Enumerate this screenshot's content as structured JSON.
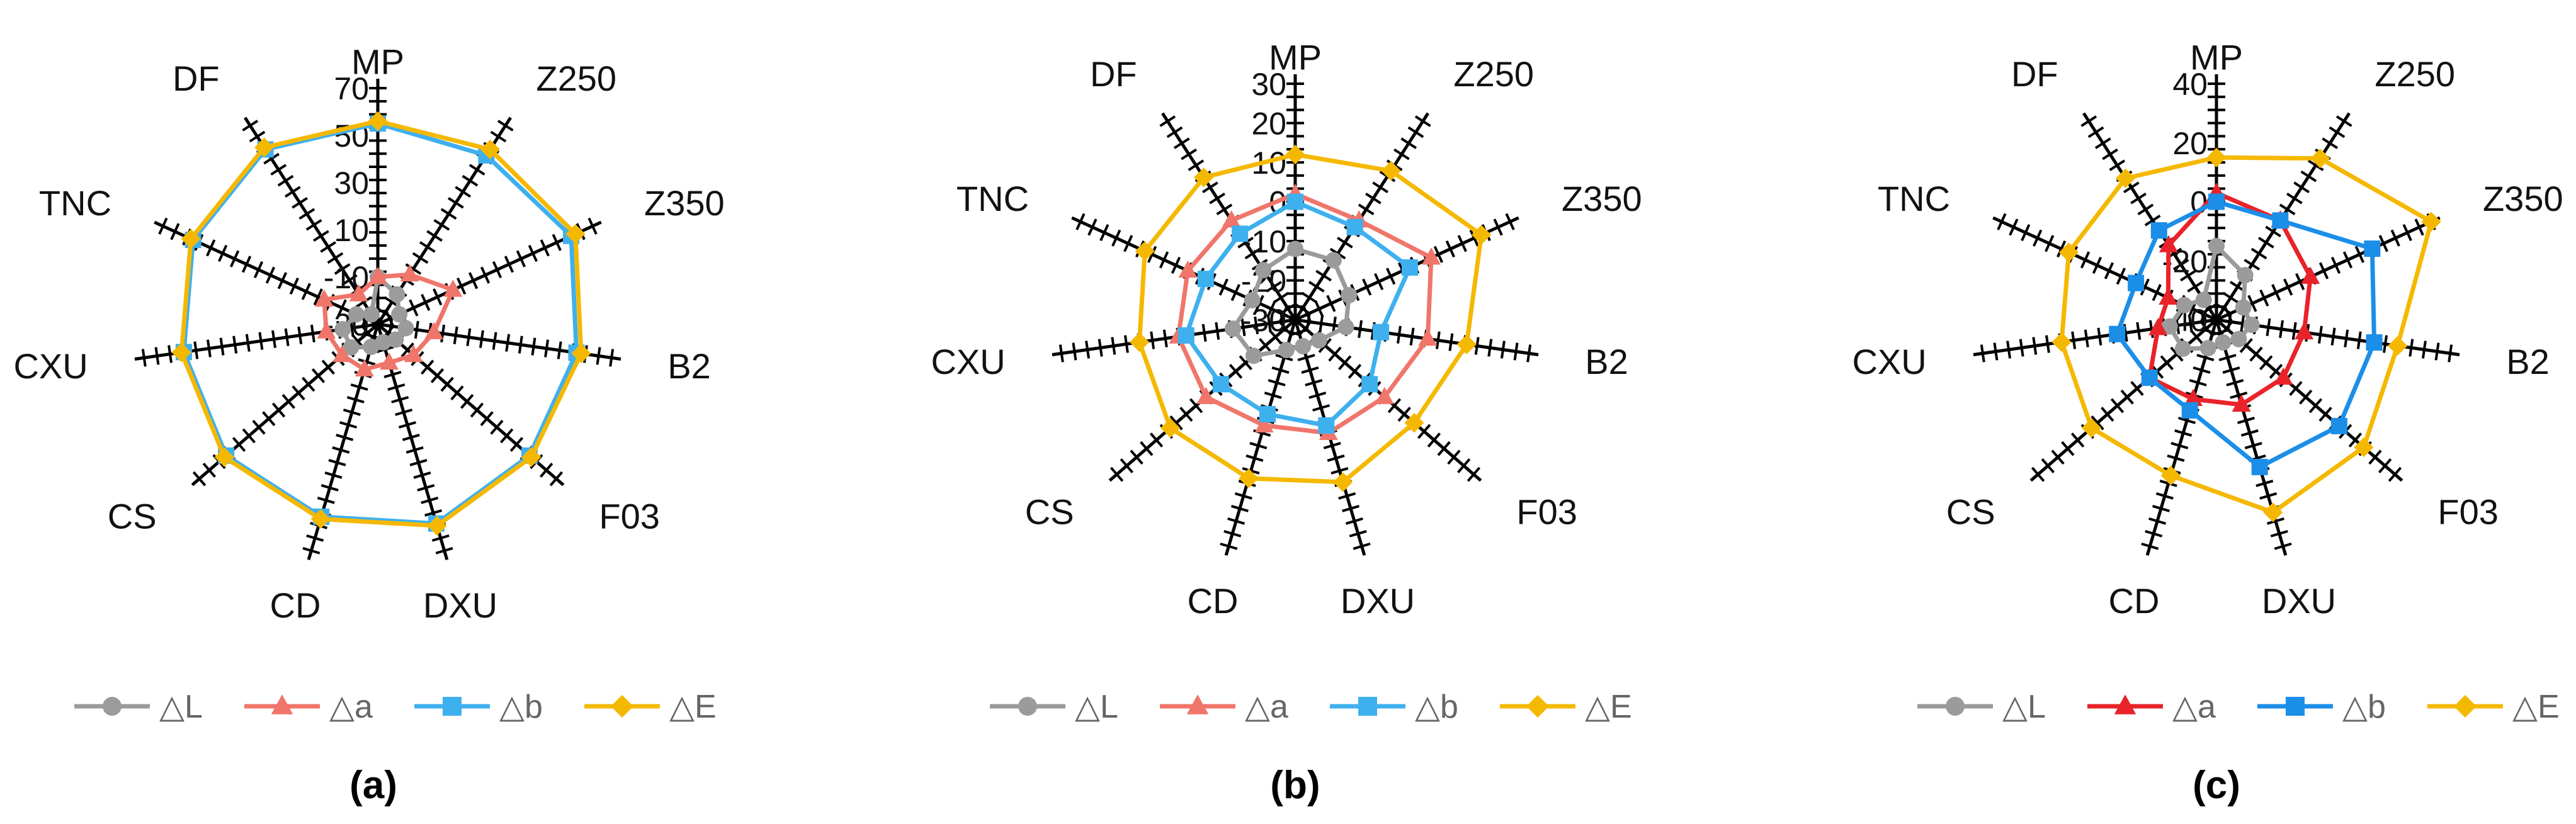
{
  "figure_labels": [
    "(a)",
    "(b)",
    "(c)"
  ],
  "chart_data": [
    {
      "type": "radar",
      "panel_label": "(a)",
      "categories": [
        "MP",
        "Z250",
        "Z350",
        "B2",
        "F03",
        "DXU",
        "CD",
        "CS",
        "CXU",
        "TNC",
        "DF"
      ],
      "axis_range": [
        -30,
        70
      ],
      "tick_labels": [
        "70",
        "50",
        "30",
        "10",
        "-10",
        "-30"
      ],
      "series": [
        {
          "name": "△L",
          "color": "#9b9b9b",
          "marker": "circle",
          "values": [
            -10,
            -15,
            -20,
            -18,
            -20,
            -22,
            -20,
            -15,
            -15,
            -20,
            -25
          ]
        },
        {
          "name": "△a",
          "color": "#f0756a",
          "marker": "triangle",
          "values": [
            -10,
            -5,
            5,
            -6,
            -10,
            -13,
            -10,
            -10,
            -8,
            -5,
            -15
          ]
        },
        {
          "name": "△b",
          "color": "#3fb0ee",
          "marker": "square",
          "values": [
            55,
            55,
            60,
            55,
            55,
            58,
            55,
            55,
            53,
            56,
            58
          ]
        },
        {
          "name": "△E",
          "color": "#f5b800",
          "marker": "diamond",
          "values": [
            56,
            58,
            62,
            57,
            56,
            59,
            56,
            56,
            54,
            57,
            59
          ]
        }
      ],
      "legend": "bottom"
    },
    {
      "type": "radar",
      "panel_label": "(b)",
      "categories": [
        "MP",
        "Z250",
        "Z350",
        "B2",
        "F03",
        "DXU",
        "CD",
        "CS",
        "CXU",
        "TNC",
        "DF"
      ],
      "axis_range": [
        -30,
        30
      ],
      "tick_labels": [
        "30",
        "20",
        "10",
        "0",
        "-10",
        "-20",
        "-30"
      ],
      "series": [
        {
          "name": "△L",
          "color": "#9b9b9b",
          "marker": "circle",
          "values": [
            -12,
            -12,
            -15,
            -17,
            -22,
            -23,
            -22,
            -16,
            -14,
            -18,
            -15
          ]
        },
        {
          "name": "△a",
          "color": "#f0756a",
          "marker": "triangle",
          "values": [
            2,
            0,
            8,
            4,
            0,
            0,
            -2,
            0,
            0,
            0,
            0
          ]
        },
        {
          "name": "△b",
          "color": "#3fb0ee",
          "marker": "square",
          "values": [
            0,
            -2,
            2,
            -8,
            -5,
            -2,
            -5,
            -5,
            -2,
            -5,
            -4
          ]
        },
        {
          "name": "△E",
          "color": "#f5b800",
          "marker": "diamond",
          "values": [
            12,
            15,
            22,
            14,
            10,
            13,
            12,
            12,
            10,
            12,
            13
          ]
        }
      ],
      "legend": "bottom"
    },
    {
      "type": "radar",
      "panel_label": "(c)",
      "categories": [
        "MP",
        "Z250",
        "Z350",
        "B2",
        "F03",
        "DXU",
        "CD",
        "CS",
        "CXU",
        "TNC",
        "DF"
      ],
      "axis_range": [
        -40,
        40
      ],
      "tick_labels": [
        "40",
        "20",
        "0",
        "-20",
        "-40"
      ],
      "series": [
        {
          "name": "△L",
          "color": "#9b9b9b",
          "marker": "circle",
          "values": [
            -15,
            -22,
            -30,
            -28,
            -30,
            -32,
            -30,
            -25,
            -24,
            -28,
            -32
          ]
        },
        {
          "name": "△a",
          "color": "#e8232a",
          "marker": "triangle",
          "values": [
            3,
            0,
            -5,
            -10,
            -10,
            -10,
            -12,
            -10,
            -20,
            -22,
            -10
          ]
        },
        {
          "name": "△b",
          "color": "#1b8ee8",
          "marker": "square",
          "values": [
            0,
            0,
            18,
            14,
            15,
            12,
            -8,
            -10,
            -6,
            -10,
            -4
          ]
        },
        {
          "name": "△E",
          "color": "#f5b800",
          "marker": "diamond",
          "values": [
            15,
            25,
            40,
            22,
            26,
            28,
            15,
            16,
            13,
            15,
            17
          ]
        }
      ],
      "legend": "bottom"
    }
  ]
}
